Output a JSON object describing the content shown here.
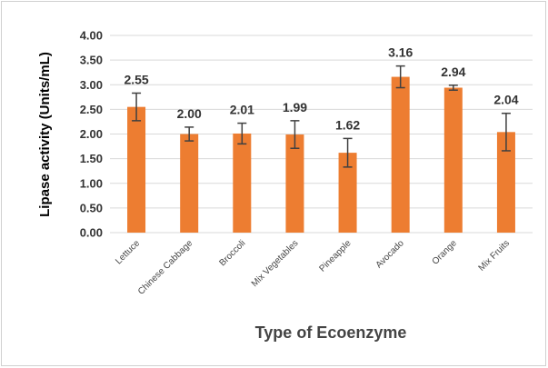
{
  "chart_data": {
    "type": "bar",
    "title": "",
    "xlabel": "Type of Ecoenzyme",
    "ylabel": "Lipase activity  (Units/mL)",
    "categories": [
      "Lettuce",
      "Chinese Cabbage",
      "Broccoli",
      "Mix Vegetables",
      "Pineapple",
      "Avocado",
      "Orange",
      "Mix Fruits"
    ],
    "values": [
      2.55,
      2.0,
      2.01,
      1.99,
      1.62,
      3.16,
      2.94,
      2.04
    ],
    "data_labels": [
      "2.55",
      "2.00",
      "2.01",
      "1.99",
      "1.62",
      "3.16",
      "2.94",
      "2.04"
    ],
    "error": [
      0.28,
      0.14,
      0.21,
      0.28,
      0.29,
      0.22,
      0.05,
      0.38
    ],
    "ylim": [
      0,
      4
    ],
    "yticks": [
      "0.00",
      "0.50",
      "1.00",
      "1.50",
      "2.00",
      "2.50",
      "3.00",
      "3.50",
      "4.00"
    ],
    "grid": true,
    "legend": "none",
    "colors": {
      "bar": "#ED7D31",
      "grid": "#d9d9d9",
      "error": "#404040"
    }
  }
}
